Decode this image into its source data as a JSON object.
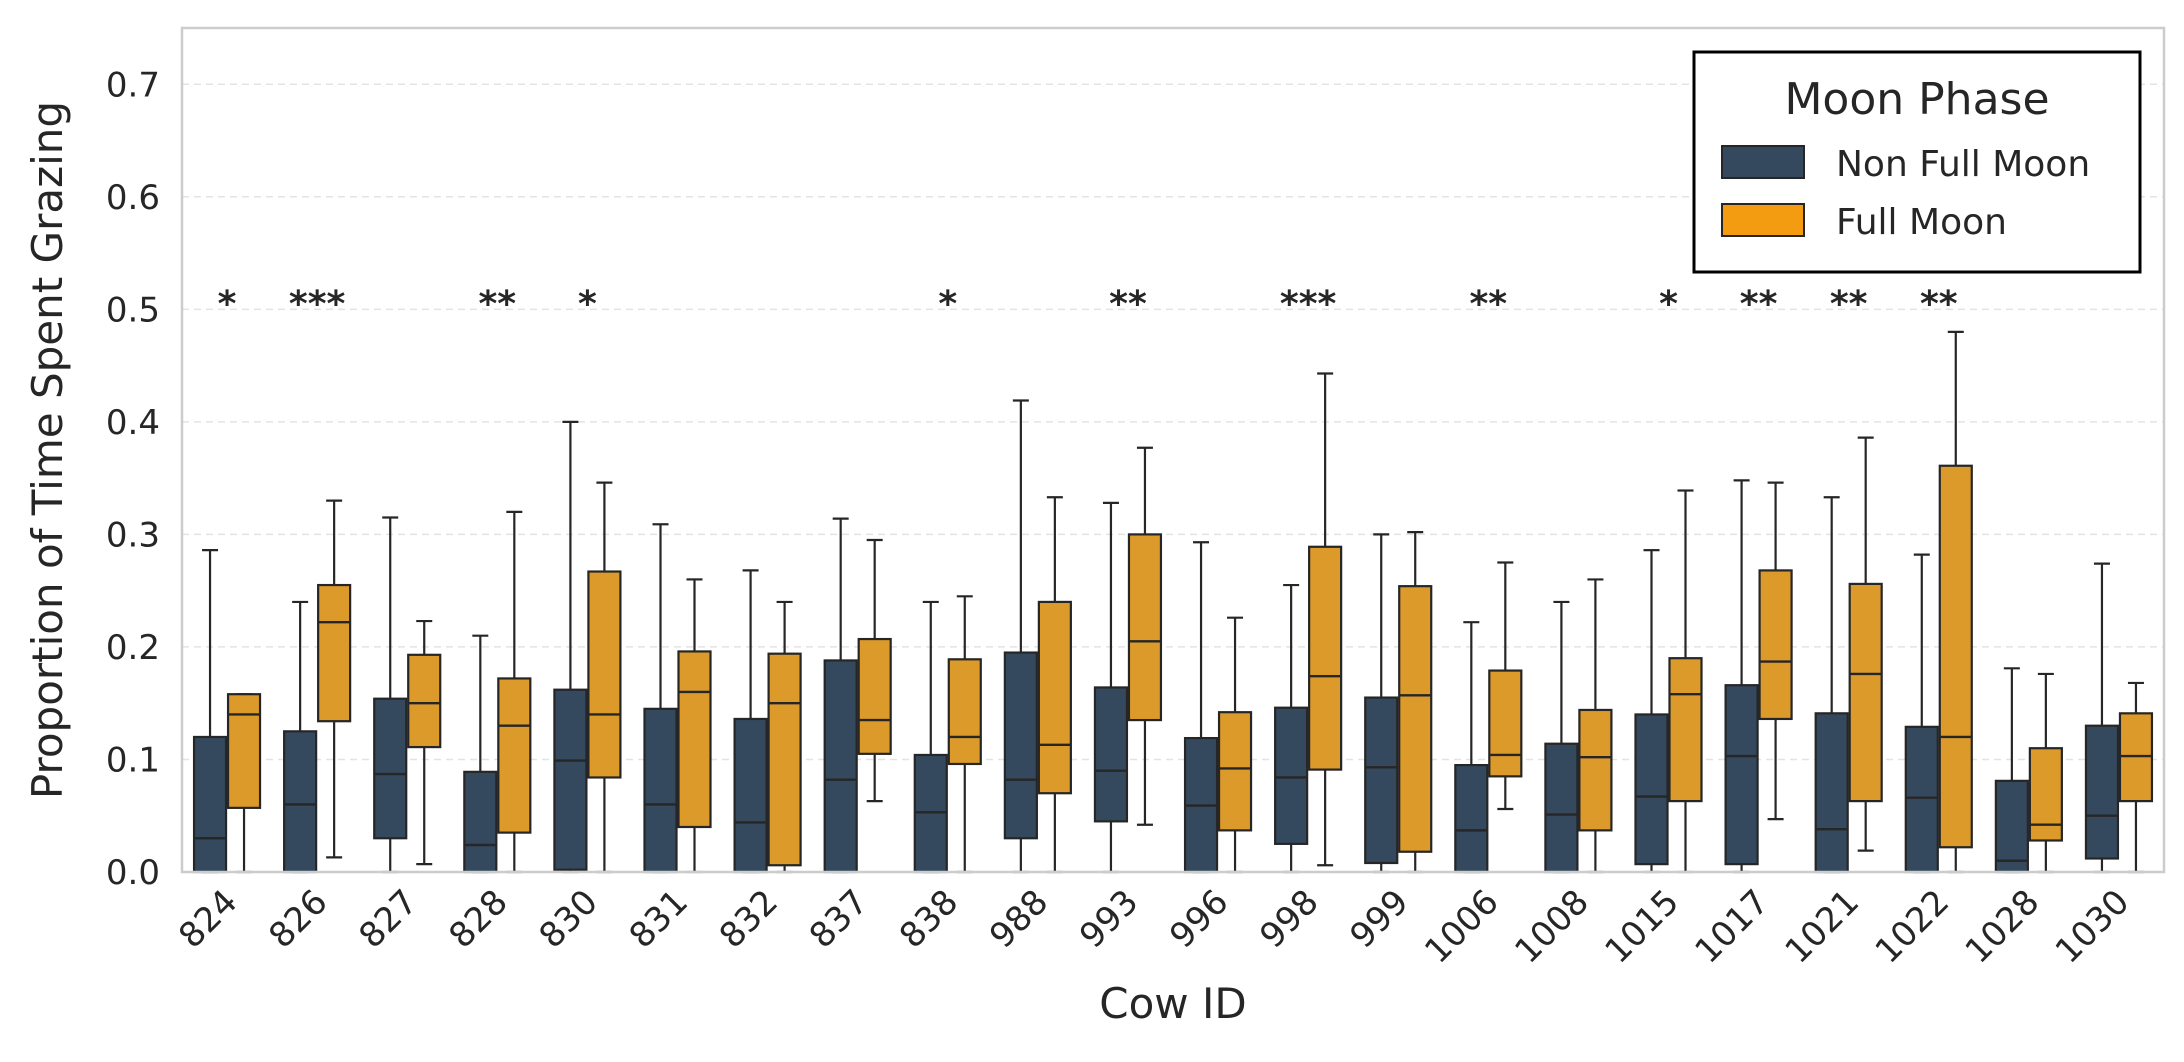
{
  "chart_data": {
    "type": "box",
    "xlabel": "Cow ID",
    "ylabel": "Proportion of Time Spent Grazing",
    "ylim": [
      0.0,
      0.75
    ],
    "yticks": [
      "0.0",
      "0.1",
      "0.2",
      "0.3",
      "0.4",
      "0.5",
      "0.6",
      "0.7"
    ],
    "grid": "horizontal dashed",
    "legend": {
      "title": "Moon Phase",
      "placement": "top-right",
      "entries": [
        {
          "label": "Non Full Moon",
          "color": "#34495e"
        },
        {
          "label": "Full Moon",
          "color": "#f39c12"
        }
      ]
    },
    "categories": [
      "824",
      "826",
      "827",
      "828",
      "830",
      "831",
      "832",
      "837",
      "838",
      "988",
      "993",
      "996",
      "998",
      "999",
      "1006",
      "1008",
      "1015",
      "1017",
      "1021",
      "1022",
      "1028",
      "1030"
    ],
    "series": [
      {
        "name": "Non Full Moon",
        "color": "#34495e",
        "boxes": [
          {
            "wlo": 0.0,
            "q1": 0.0,
            "med": 0.03,
            "q3": 0.12,
            "whi": 0.286
          },
          {
            "wlo": 0.0,
            "q1": 0.0,
            "med": 0.06,
            "q3": 0.125,
            "whi": 0.24
          },
          {
            "wlo": 0.0,
            "q1": 0.03,
            "med": 0.087,
            "q3": 0.154,
            "whi": 0.315
          },
          {
            "wlo": 0.0,
            "q1": 0.0,
            "med": 0.024,
            "q3": 0.089,
            "whi": 0.21
          },
          {
            "wlo": 0.0,
            "q1": 0.002,
            "med": 0.099,
            "q3": 0.162,
            "whi": 0.4
          },
          {
            "wlo": 0.0,
            "q1": 0.0,
            "med": 0.06,
            "q3": 0.145,
            "whi": 0.309
          },
          {
            "wlo": 0.0,
            "q1": 0.0,
            "med": 0.044,
            "q3": 0.136,
            "whi": 0.268
          },
          {
            "wlo": 0.0,
            "q1": 0.0,
            "med": 0.082,
            "q3": 0.188,
            "whi": 0.314
          },
          {
            "wlo": 0.0,
            "q1": 0.0,
            "med": 0.053,
            "q3": 0.104,
            "whi": 0.24
          },
          {
            "wlo": 0.0,
            "q1": 0.03,
            "med": 0.082,
            "q3": 0.195,
            "whi": 0.419
          },
          {
            "wlo": 0.0,
            "q1": 0.045,
            "med": 0.09,
            "q3": 0.164,
            "whi": 0.328
          },
          {
            "wlo": 0.0,
            "q1": 0.0,
            "med": 0.059,
            "q3": 0.119,
            "whi": 0.293
          },
          {
            "wlo": 0.0,
            "q1": 0.025,
            "med": 0.084,
            "q3": 0.146,
            "whi": 0.255
          },
          {
            "wlo": 0.0,
            "q1": 0.008,
            "med": 0.093,
            "q3": 0.155,
            "whi": 0.3
          },
          {
            "wlo": 0.0,
            "q1": 0.0,
            "med": 0.037,
            "q3": 0.095,
            "whi": 0.222
          },
          {
            "wlo": 0.0,
            "q1": 0.0,
            "med": 0.051,
            "q3": 0.114,
            "whi": 0.24
          },
          {
            "wlo": 0.0,
            "q1": 0.007,
            "med": 0.067,
            "q3": 0.14,
            "whi": 0.286
          },
          {
            "wlo": 0.0,
            "q1": 0.007,
            "med": 0.103,
            "q3": 0.166,
            "whi": 0.348
          },
          {
            "wlo": 0.0,
            "q1": 0.0,
            "med": 0.038,
            "q3": 0.141,
            "whi": 0.333
          },
          {
            "wlo": 0.0,
            "q1": 0.0,
            "med": 0.066,
            "q3": 0.129,
            "whi": 0.282
          },
          {
            "wlo": 0.0,
            "q1": 0.0,
            "med": 0.01,
            "q3": 0.081,
            "whi": 0.181
          },
          {
            "wlo": 0.0,
            "q1": 0.012,
            "med": 0.05,
            "q3": 0.13,
            "whi": 0.274
          }
        ]
      },
      {
        "name": "Full Moon",
        "color": "#f39c12",
        "boxes": [
          {
            "wlo": 0.0,
            "q1": 0.057,
            "med": 0.14,
            "q3": 0.158,
            "whi": 0.158
          },
          {
            "wlo": 0.013,
            "q1": 0.134,
            "med": 0.222,
            "q3": 0.255,
            "whi": 0.33
          },
          {
            "wlo": 0.007,
            "q1": 0.111,
            "med": 0.15,
            "q3": 0.193,
            "whi": 0.223
          },
          {
            "wlo": 0.0,
            "q1": 0.035,
            "med": 0.13,
            "q3": 0.172,
            "whi": 0.32
          },
          {
            "wlo": 0.0,
            "q1": 0.084,
            "med": 0.14,
            "q3": 0.267,
            "whi": 0.346
          },
          {
            "wlo": 0.0,
            "q1": 0.04,
            "med": 0.16,
            "q3": 0.196,
            "whi": 0.26
          },
          {
            "wlo": 0.0,
            "q1": 0.006,
            "med": 0.15,
            "q3": 0.194,
            "whi": 0.24
          },
          {
            "wlo": 0.063,
            "q1": 0.105,
            "med": 0.135,
            "q3": 0.207,
            "whi": 0.295
          },
          {
            "wlo": 0.0,
            "q1": 0.096,
            "med": 0.12,
            "q3": 0.189,
            "whi": 0.245
          },
          {
            "wlo": 0.0,
            "q1": 0.07,
            "med": 0.113,
            "q3": 0.24,
            "whi": 0.333
          },
          {
            "wlo": 0.042,
            "q1": 0.135,
            "med": 0.205,
            "q3": 0.3,
            "whi": 0.377
          },
          {
            "wlo": 0.0,
            "q1": 0.037,
            "med": 0.092,
            "q3": 0.142,
            "whi": 0.226
          },
          {
            "wlo": 0.006,
            "q1": 0.091,
            "med": 0.174,
            "q3": 0.289,
            "whi": 0.443
          },
          {
            "wlo": 0.0,
            "q1": 0.018,
            "med": 0.157,
            "q3": 0.254,
            "whi": 0.302
          },
          {
            "wlo": 0.056,
            "q1": 0.085,
            "med": 0.104,
            "q3": 0.179,
            "whi": 0.275
          },
          {
            "wlo": 0.0,
            "q1": 0.037,
            "med": 0.102,
            "q3": 0.144,
            "whi": 0.26
          },
          {
            "wlo": 0.0,
            "q1": 0.063,
            "med": 0.158,
            "q3": 0.19,
            "whi": 0.339
          },
          {
            "wlo": 0.047,
            "q1": 0.136,
            "med": 0.187,
            "q3": 0.268,
            "whi": 0.346
          },
          {
            "wlo": 0.019,
            "q1": 0.063,
            "med": 0.176,
            "q3": 0.256,
            "whi": 0.386
          },
          {
            "wlo": 0.0,
            "q1": 0.022,
            "med": 0.12,
            "q3": 0.361,
            "whi": 0.48
          },
          {
            "wlo": 0.0,
            "q1": 0.028,
            "med": 0.042,
            "q3": 0.11,
            "whi": 0.176
          },
          {
            "wlo": 0.0,
            "q1": 0.063,
            "med": 0.103,
            "q3": 0.141,
            "whi": 0.168
          }
        ]
      }
    ],
    "significance": [
      "*",
      "***",
      "",
      "**",
      "*",
      "",
      "",
      "",
      "*",
      "",
      "**",
      "",
      "***",
      "",
      "**",
      "",
      "*",
      "**",
      "**",
      "**",
      "",
      ""
    ],
    "significance_y": 0.51
  }
}
